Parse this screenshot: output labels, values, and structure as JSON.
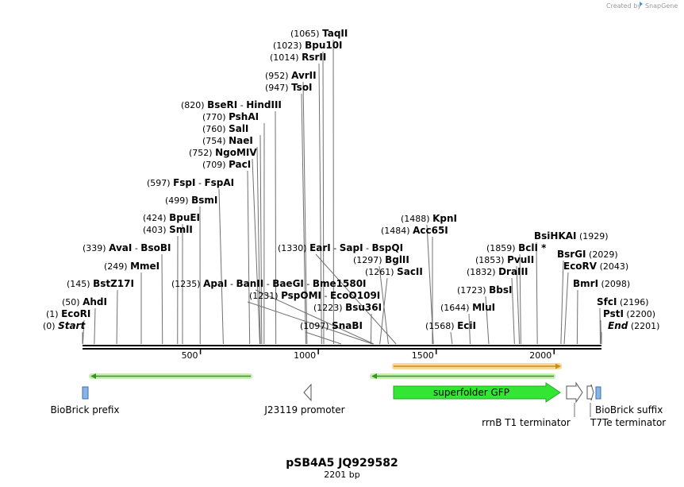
{
  "credit": {
    "text": "Created by",
    "brand": "SnapGene"
  },
  "title": "pSB4A5 JQ929582",
  "subtitle": "2201 bp",
  "sequence_length": 2201,
  "axis_ticks": [
    500,
    1000,
    1500,
    2000
  ],
  "colors": {
    "backbone": "#000000",
    "gfp": "#33e633",
    "gfp_stroke": "#22aa22",
    "small_feature": "#8ab4e6",
    "arrow_green": "#2f9a1f",
    "arrow_green_glow": "#c8eeb0",
    "arrow_orange": "#c89018",
    "arrow_orange_glow": "#f7d99a",
    "label_line": "#707070"
  },
  "enzyme_labels": [
    {
      "pos": "(1065)",
      "name": "TaqII",
      "site": 1065
    },
    {
      "pos": "(1023)",
      "name": "Bpu10I",
      "site": 1023
    },
    {
      "pos": "(1014)",
      "name": "RsrII",
      "site": 1014
    },
    {
      "pos": "(952)",
      "name": "AvrII",
      "site": 952
    },
    {
      "pos": "(947)",
      "name": "TsoI",
      "site": 947
    },
    {
      "pos": "(820)",
      "name": "BseRI",
      "alt": "HindIII",
      "site": 820
    },
    {
      "pos": "(770)",
      "name": "PshAI",
      "site": 770
    },
    {
      "pos": "(760)",
      "name": "SalI",
      "site": 760
    },
    {
      "pos": "(754)",
      "name": "NaeI",
      "site": 754
    },
    {
      "pos": "(752)",
      "name": "NgoMIV",
      "site": 752
    },
    {
      "pos": "(709)",
      "name": "PacI",
      "site": 709
    },
    {
      "pos": "(597)",
      "name": "FspI",
      "alt": "FspAI",
      "site": 597
    },
    {
      "pos": "(499)",
      "name": "BsmI",
      "site": 499
    },
    {
      "pos": "(424)",
      "name": "BpuEI",
      "site": 424
    },
    {
      "pos": "(403)",
      "name": "SmlI",
      "site": 403
    },
    {
      "pos": "(339)",
      "name": "AvaI",
      "alt": "BsoBI",
      "site": 339
    },
    {
      "pos": "(249)",
      "name": "MmeI",
      "site": 249
    },
    {
      "pos": "(145)",
      "name": "BstZ17I",
      "site": 145
    },
    {
      "pos": "(50)",
      "name": "AhdI",
      "site": 50
    },
    {
      "pos": "(1)",
      "name": "EcoRI",
      "site": 1
    },
    {
      "pos": "(0)",
      "name": "Start",
      "site": 0,
      "italic": true
    },
    {
      "pos": "(1330)",
      "name": "EarI",
      "alt": "SapI",
      "alt2": "BspQI",
      "site": 1330
    },
    {
      "pos": "(1297)",
      "name": "BglII",
      "site": 1297
    },
    {
      "pos": "(1261)",
      "name": "SacII",
      "site": 1261
    },
    {
      "pos": "(1235)",
      "name": "ApaI",
      "alt": "BanII",
      "alt2": "BaeGI",
      "alt3": "Bme1580I",
      "site": 1235
    },
    {
      "pos": "(1231)",
      "name": "PspOMI",
      "alt": "EcoO109I",
      "site": 1231
    },
    {
      "pos": "(1223)",
      "name": "Bsu36I",
      "site": 1223
    },
    {
      "pos": "(1097)",
      "name": "SnaBI",
      "site": 1097
    },
    {
      "pos": "(1488)",
      "name": "KpnI",
      "site": 1488
    },
    {
      "pos": "(1484)",
      "name": "Acc65I",
      "site": 1484
    },
    {
      "pos": "(1859)",
      "name": "BclI *",
      "site": 1859
    },
    {
      "pos": "(1853)",
      "name": "PvuII",
      "site": 1853
    },
    {
      "pos": "(1832)",
      "name": "DraIII",
      "site": 1832
    },
    {
      "pos": "(1723)",
      "name": "BbsI",
      "site": 1723
    },
    {
      "pos": "(1644)",
      "name": "MluI",
      "site": 1644
    },
    {
      "pos": "(1568)",
      "name": "EciI",
      "site": 1568
    },
    {
      "pos": "(1929)",
      "name": "BsiHKAI",
      "site": 1929
    },
    {
      "pos": "(2029)",
      "name": "BsrGI",
      "site": 2029
    },
    {
      "pos": "(2043)",
      "name": "EcoRV",
      "site": 2043
    },
    {
      "pos": "(2098)",
      "name": "BmrI",
      "site": 2098
    },
    {
      "pos": "(2196)",
      "name": "SfcI",
      "site": 2196
    },
    {
      "pos": "(2200)",
      "name": "PstI",
      "site": 2200
    },
    {
      "pos": "(2201)",
      "name": "End",
      "site": 2201,
      "italic": true
    }
  ],
  "features": [
    {
      "name": "BioBrick prefix"
    },
    {
      "name": "J23119 promoter"
    },
    {
      "name": "superfolder GFP"
    },
    {
      "name": "rrnB T1 terminator"
    },
    {
      "name": "BioBrick suffix"
    },
    {
      "name": "T7Te terminator"
    }
  ]
}
